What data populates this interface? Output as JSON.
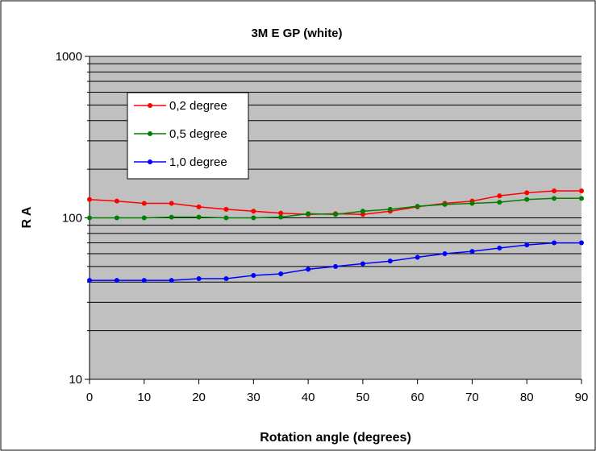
{
  "chart_data": {
    "type": "line",
    "title": "3M E GP (white)",
    "xlabel": "Rotation angle (degrees)",
    "ylabel": "R A",
    "x_ticks": [
      0,
      10,
      20,
      30,
      40,
      50,
      60,
      70,
      80,
      90
    ],
    "x_tick_labels": [
      "0",
      "10",
      "20",
      "30",
      "40",
      "50",
      "60",
      "70",
      "80",
      "90"
    ],
    "y_ticks": [
      10,
      100,
      1000
    ],
    "y_tick_labels": [
      "10",
      "100",
      "1000"
    ],
    "xlim": [
      0,
      90
    ],
    "ylim": [
      10,
      1000
    ],
    "y_scale": "log",
    "grid": "horizontal",
    "legend_position": "top-left",
    "x": [
      0,
      5,
      10,
      15,
      20,
      25,
      30,
      35,
      40,
      45,
      50,
      55,
      60,
      65,
      70,
      75,
      80,
      85,
      90
    ],
    "series": [
      {
        "name": "0,2 degree",
        "color": "#ff0000",
        "values": [
          130,
          127,
          123,
          123,
          117,
          113,
          110,
          107,
          105,
          106,
          105,
          110,
          117,
          123,
          127,
          137,
          143,
          147,
          147
        ]
      },
      {
        "name": "0,5 degree",
        "color": "#008000",
        "values": [
          100,
          100,
          100,
          101,
          101,
          100,
          100,
          101,
          106,
          105,
          110,
          113,
          118,
          121,
          123,
          125,
          130,
          132,
          132
        ]
      },
      {
        "name": "1,0 degree",
        "color": "#0000ff",
        "values": [
          41,
          41,
          41,
          41,
          42,
          42,
          44,
          45,
          48,
          50,
          52,
          54,
          57,
          60,
          62,
          65,
          68,
          70,
          70
        ]
      }
    ]
  }
}
